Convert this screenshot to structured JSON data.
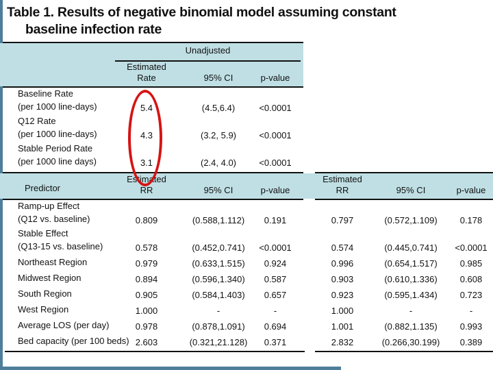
{
  "colors": {
    "accent_bar": "#4e7e9a",
    "header_band": "#bfdfe4",
    "annotation_red": "#d61414"
  },
  "title": {
    "line1": "Table 1. Results of negative binomial model assuming constant",
    "line2": "baseline infection rate"
  },
  "top_table": {
    "group_header": "Unadjusted",
    "col_estimated_line1": "Estimated",
    "col_estimated_line2": "Rate",
    "col_ci": "95% CI",
    "col_p": "p-value",
    "rows": [
      {
        "label1": "Baseline Rate",
        "label2": "(per 1000 line-days)",
        "v": [
          "5.4",
          "(4.5,6.4)",
          "<0.0001"
        ]
      },
      {
        "label1": "Q12 Rate",
        "label2": "(per 1000 line-days)",
        "v": [
          "4.3",
          "(3.2, 5.9)",
          "<0.0001"
        ]
      },
      {
        "label1": "Stable Period Rate",
        "label2": "(per 1000 line days)",
        "v": [
          "3.1",
          "(2.4, 4.0)",
          "<0.0001"
        ]
      }
    ]
  },
  "main_table": {
    "col_predictor": "Predictor",
    "left_group": {
      "col_est_line1": "Estimated",
      "col_est_line2": "RR",
      "col_ci": "95% CI",
      "col_p": "p-value"
    },
    "right_group": {
      "col_est_line1": "Estimated",
      "col_est_line2": "RR",
      "col_ci": "95% CI",
      "col_p": "p-value"
    },
    "rows": [
      {
        "label1": "Ramp-up Effect",
        "label2": "(Q12 vs. baseline)",
        "v": [
          "0.809",
          "(0.588,1.112)",
          "0.191",
          "0.797",
          "(0.572,1.109)",
          "0.178"
        ]
      },
      {
        "label1": "Stable Effect",
        "label2": "(Q13-15 vs. baseline)",
        "v": [
          "0.578",
          "(0.452,0.741)",
          "<0.0001",
          "0.574",
          "(0.445,0.741)",
          "<0.0001"
        ]
      },
      {
        "label1": "Northeast Region",
        "v": [
          "0.979",
          "(0.633,1.515)",
          "0.924",
          "0.996",
          "(0.654,1.517)",
          "0.985"
        ]
      },
      {
        "label1": "Midwest Region",
        "v": [
          "0.894",
          "(0.596,1.340)",
          "0.587",
          "0.903",
          "(0.610,1.336)",
          "0.608"
        ]
      },
      {
        "label1": "South Region",
        "v": [
          "0.905",
          "(0.584,1.403)",
          "0.657",
          "0.923",
          "(0.595,1.434)",
          "0.723"
        ]
      },
      {
        "label1": "West Region",
        "v": [
          "1.000",
          "-",
          "-",
          "1.000",
          "-",
          "-"
        ]
      },
      {
        "label1": "Average LOS (per day)",
        "v": [
          "0.978",
          "(0.878,1.091)",
          "0.694",
          "1.001",
          "(0.882,1.135)",
          "0.993"
        ]
      },
      {
        "label1": "Bed capacity (per 100 beds)",
        "v": [
          "2.603",
          "(0.321,21.128)",
          "0.371",
          "2.832",
          "(0.266,30.199)",
          "0.389"
        ]
      }
    ]
  },
  "annotation": {
    "shape": "ellipse",
    "circled_values": [
      "5.4",
      "4.3",
      "3.1"
    ]
  }
}
